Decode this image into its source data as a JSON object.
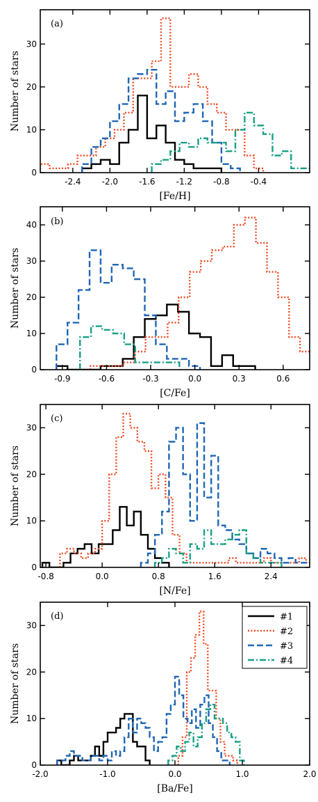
{
  "styles": {
    "#1": {
      "color": "#000000",
      "dash": "",
      "width": 2.4
    },
    "#2": {
      "color": "#ee4a22",
      "dash": "2,2.5",
      "width": 2.4
    },
    "#3": {
      "color": "#1f66b4",
      "dash": "9,4",
      "width": 2.4
    },
    "#4": {
      "color": "#17a085",
      "dash": "9,3,2,3",
      "width": 2.4
    }
  },
  "legend": [
    "#1",
    "#2",
    "#3",
    "#4"
  ],
  "chart_data": [
    {
      "type": "histogram",
      "panel_label": "(a)",
      "xlabel": "[Fe/H]",
      "ylabel": "Number of stars",
      "xlim": [
        -2.75,
        0.15
      ],
      "ylim": [
        0,
        38
      ],
      "xticks": [
        -2.4,
        -2.0,
        -1.6,
        -1.2,
        -0.8,
        -0.4
      ],
      "xtick_labels": [
        "-2.4",
        "-2.0",
        "-1.6",
        "-1.2",
        "-0.8",
        "-0.4"
      ],
      "yticks": [
        0,
        10,
        20,
        30
      ],
      "ytick_labels": [
        "0",
        "10",
        "20",
        "30"
      ],
      "bin_width": 0.1,
      "series": [
        {
          "name": "#1",
          "start": -2.3,
          "values": [
            1,
            2,
            3,
            2,
            7,
            10,
            18,
            8,
            11,
            7,
            3,
            2,
            1,
            1,
            1
          ]
        },
        {
          "name": "#2",
          "start": -2.75,
          "values": [
            2,
            1,
            1,
            2,
            4,
            4,
            6,
            8,
            10,
            14,
            22,
            22,
            26,
            36,
            20,
            20,
            23,
            20,
            16,
            14,
            10,
            10,
            4,
            1
          ]
        },
        {
          "name": "#3",
          "start": -2.3,
          "values": [
            2,
            6,
            8,
            12,
            16,
            22,
            23,
            24,
            16,
            19,
            12,
            14,
            16,
            12,
            7,
            2,
            1
          ]
        },
        {
          "name": "#4",
          "start": -1.55,
          "values": [
            2,
            3,
            5,
            7,
            6,
            8,
            7,
            7,
            5,
            10,
            14,
            11,
            9,
            4,
            5,
            1,
            1,
            1
          ]
        }
      ]
    },
    {
      "type": "histogram",
      "panel_label": "(b)",
      "xlabel": "[C/Fe]",
      "ylabel": "Number of stars",
      "xlim": [
        -1.05,
        0.78
      ],
      "ylim": [
        0,
        45
      ],
      "xticks": [
        -0.9,
        -0.6,
        -0.3,
        0.0,
        0.3,
        0.6
      ],
      "xtick_labels": [
        "-0.9",
        "-0.6",
        "-0.3",
        "0.0",
        "0.3",
        "0.6"
      ],
      "yticks": [
        0,
        10,
        20,
        30,
        40
      ],
      "ytick_labels": [
        "0",
        "10",
        "20",
        "30",
        "40"
      ],
      "bin_width": 0.075,
      "series": [
        {
          "name": "#1",
          "start": -0.94,
          "values": [
            1,
            0,
            0,
            0,
            1,
            1,
            3,
            9,
            14,
            15,
            18,
            16,
            10,
            9,
            1,
            4,
            1,
            1
          ]
        },
        {
          "name": "#2",
          "start": -0.71,
          "values": [
            1,
            1,
            1,
            2,
            5,
            9,
            9,
            13,
            20,
            27,
            30,
            33,
            34,
            40,
            42,
            35,
            27,
            20,
            9,
            5,
            6,
            1
          ]
        },
        {
          "name": "#3",
          "start": -0.94,
          "values": [
            7,
            13,
            22,
            33,
            24,
            29,
            28,
            25,
            15,
            7,
            3,
            3,
            1
          ]
        },
        {
          "name": "#4",
          "start": -0.78,
          "values": [
            9,
            12,
            11,
            10,
            7,
            2,
            2,
            2,
            2
          ]
        }
      ]
    },
    {
      "type": "histogram",
      "panel_label": "(c)",
      "xlabel": "[N/Fe]",
      "ylabel": "Number of stars",
      "xlim": [
        -0.88,
        2.95
      ],
      "ylim": [
        0,
        35
      ],
      "xticks": [
        -0.8,
        0.0,
        0.8,
        1.6,
        2.4
      ],
      "xtick_labels": [
        "-0.8",
        "0.0",
        "0.8",
        "1.6",
        "2.4"
      ],
      "yticks": [
        0,
        10,
        20,
        30
      ],
      "ytick_labels": [
        "0",
        "10",
        "20",
        "30"
      ],
      "bin_width": 0.1,
      "series": [
        {
          "name": "#1",
          "start": -0.85,
          "values": [
            1,
            0,
            0,
            1,
            3,
            4,
            5,
            3,
            5,
            5,
            8,
            13,
            9,
            12,
            7,
            4,
            2,
            1
          ]
        },
        {
          "name": "#2",
          "start": -0.6,
          "values": [
            3,
            4,
            3,
            2,
            3,
            4,
            10,
            20,
            28,
            33,
            30,
            27,
            25,
            17,
            20,
            15,
            7,
            3,
            1,
            1,
            1,
            1,
            1,
            1,
            2,
            1,
            1,
            1,
            1,
            2,
            1,
            1,
            1,
            1,
            2,
            1,
            1
          ]
        },
        {
          "name": "#3",
          "start": 0.55,
          "values": [
            1,
            3,
            7,
            12,
            27,
            30,
            20,
            10,
            31,
            15,
            24,
            9,
            8,
            6,
            5,
            3,
            2,
            4,
            3,
            2,
            1,
            2,
            1,
            1,
            1,
            1
          ]
        },
        {
          "name": "#4",
          "start": 0.75,
          "values": [
            1,
            2,
            4,
            3,
            1,
            5,
            4,
            8,
            5,
            5,
            6,
            7,
            8,
            3,
            2,
            1,
            1,
            1
          ]
        }
      ]
    },
    {
      "type": "histogram",
      "panel_label": "(d)",
      "xlabel": "[Ba/Fe]",
      "ylabel": "Number of stars",
      "xlim": [
        -2.0,
        2.0
      ],
      "ylim": [
        0,
        35
      ],
      "xticks": [
        -2.0,
        -1.0,
        0.0,
        1.0,
        2.0
      ],
      "xtick_labels": [
        "-2.0",
        "-1.0",
        "0.0",
        "1.0",
        "2.0"
      ],
      "yticks": [
        0,
        10,
        20,
        30
      ],
      "ytick_labels": [
        "0",
        "10",
        "20",
        "30"
      ],
      "bin_width": 0.0625,
      "series": [
        {
          "name": "#1",
          "start": -1.75,
          "values": [
            1,
            0,
            0,
            1,
            2,
            1,
            1,
            1,
            2,
            4,
            2,
            5,
            7,
            7,
            8,
            10,
            11,
            11,
            5,
            4,
            4,
            1
          ]
        },
        {
          "name": "#2",
          "start": 0.05,
          "values": [
            2,
            6,
            20,
            23,
            28,
            33,
            26,
            16,
            16,
            10,
            5,
            2,
            2,
            1
          ]
        },
        {
          "name": "#3",
          "start": -1.75,
          "values": [
            1,
            1,
            2,
            3,
            2,
            2,
            1,
            1,
            2,
            2,
            1,
            2,
            1,
            3,
            2,
            3,
            6,
            10,
            7,
            10,
            9,
            8,
            6,
            3,
            5,
            6,
            11,
            13,
            19,
            15,
            10,
            9,
            12,
            8,
            13,
            15,
            9,
            6,
            3,
            1,
            1
          ]
        },
        {
          "name": "#4",
          "start": -0.1,
          "values": [
            1,
            2,
            4,
            3,
            5,
            7,
            4,
            6,
            9,
            12,
            13,
            10,
            10,
            9,
            7,
            6,
            5,
            1
          ]
        }
      ]
    }
  ]
}
